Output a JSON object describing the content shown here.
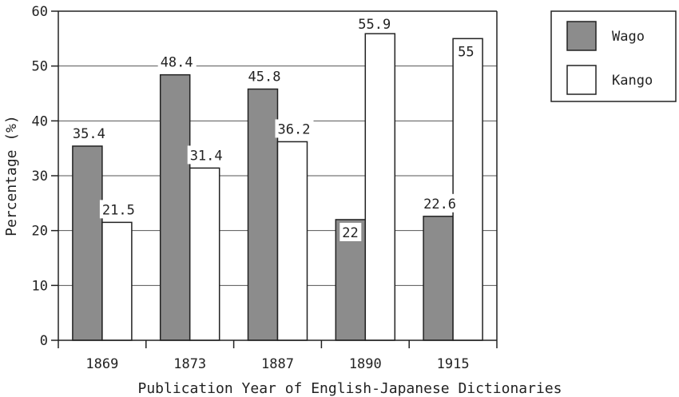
{
  "chart_data": {
    "type": "bar",
    "categories": [
      "1869",
      "1873",
      "1887",
      "1890",
      "1915"
    ],
    "series": [
      {
        "name": "Wago",
        "values": [
          35.4,
          48.4,
          45.8,
          22,
          22.6
        ],
        "labels": [
          "35.4",
          "48.4",
          "45.8",
          "22",
          "22.6"
        ],
        "color": "#8c8c8c"
      },
      {
        "name": "Kango",
        "values": [
          21.5,
          31.4,
          36.2,
          55.9,
          55
        ],
        "labels": [
          "21.5",
          "31.4",
          "36.2",
          "55.9",
          "55"
        ],
        "color": "#ffffff"
      }
    ],
    "xlabel": "Publication Year of English-Japanese Dictionaries",
    "ylabel": "Percentage (%)",
    "ylim": [
      0,
      60
    ],
    "yticks": [
      "0",
      "10",
      "20",
      "30",
      "40",
      "50",
      "60"
    ],
    "grid": true,
    "legend_position": "top-right"
  },
  "colors": {
    "axis": "#222222",
    "grid": "#555555",
    "bar_edge": "#222222"
  }
}
